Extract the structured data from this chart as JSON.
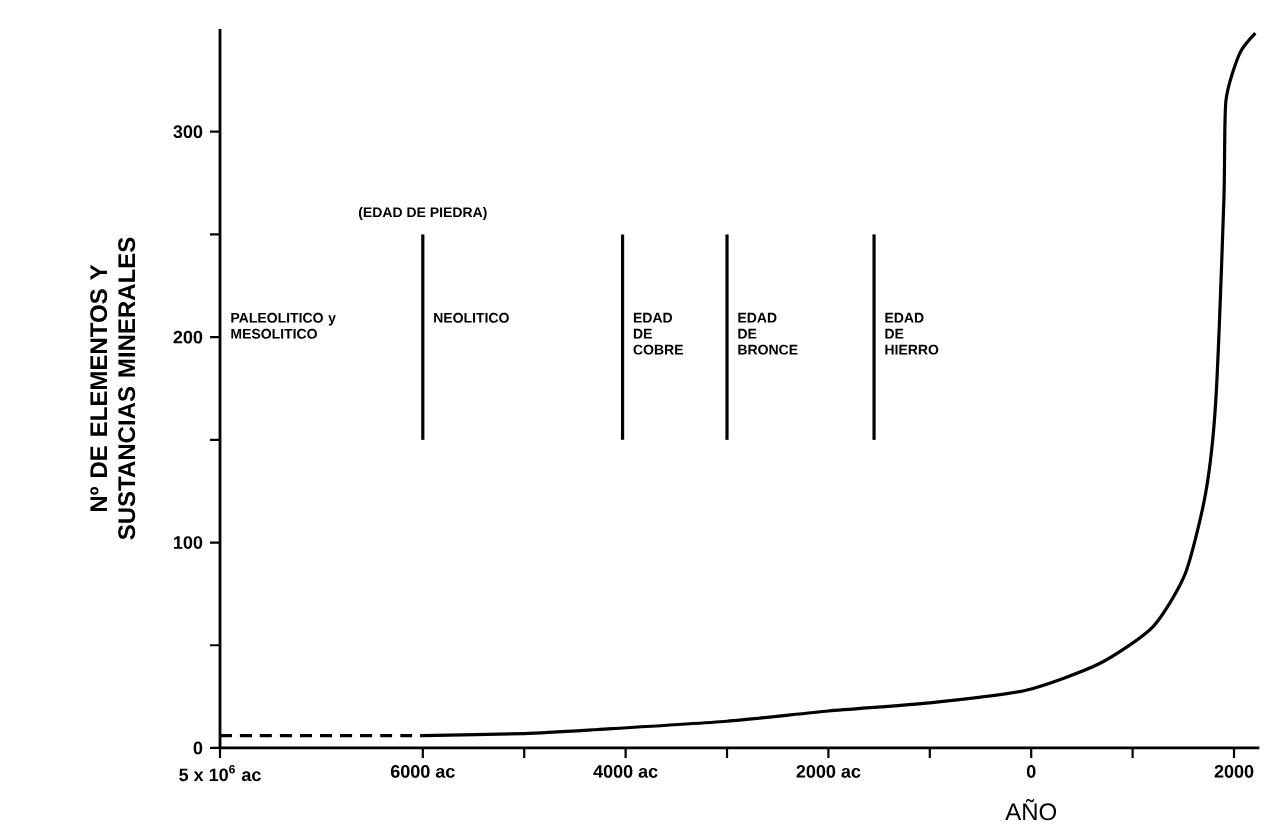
{
  "chart_data": {
    "type": "line",
    "xlabel": "AÑO",
    "ylabel": "Nº DE ELEMENTOS Y SUSTANCIAS MINERALES",
    "xlim": [
      -8000,
      2250
    ],
    "ylim": [
      0,
      350
    ],
    "xticks": [
      {
        "value": -8000,
        "label": "5 x 10$^{6}$ ac"
      },
      {
        "value": -6000,
        "label": "6000 ac"
      },
      {
        "value": -5000,
        "label": null
      },
      {
        "value": -4000,
        "label": "4000 ac"
      },
      {
        "value": -3000,
        "label": null
      },
      {
        "value": -2000,
        "label": "2000 ac"
      },
      {
        "value": -1000,
        "label": null
      },
      0,
      {
        "value": 1000,
        "label": null
      },
      2000
    ],
    "yticks": [
      0,
      {
        "value": 50,
        "label": null
      },
      100,
      {
        "value": 150,
        "label": null
      },
      200,
      {
        "value": 250,
        "label": null
      },
      300
    ],
    "series": [
      {
        "color": "#000000",
        "line_style": "dashed",
        "x": [
          -8000,
          -6000
        ],
        "values": [
          6,
          6
        ]
      },
      {
        "color": "#000000",
        "line_style": "solid",
        "x": [
          -6000,
          -5000,
          -4270,
          -3000,
          -2000,
          -1000,
          -60,
          670,
          1200,
          1520,
          1720,
          1820,
          1900,
          1920,
          2055,
          2210
        ],
        "values": [
          6,
          7,
          9,
          13,
          18,
          22,
          28,
          41,
          59,
          85,
          124,
          169,
          267,
          315,
          338,
          348
        ]
      },
      {
        "color": "#000000",
        "line_style": "solid",
        "x": [
          -6000,
          -6000
        ],
        "values": [
          150,
          250
        ]
      },
      {
        "color": "#000000",
        "line_style": "solid",
        "x": [
          -4030,
          -4030
        ],
        "values": [
          150,
          250
        ]
      },
      {
        "color": "#000000",
        "line_style": "solid",
        "x": [
          -3000,
          -3000
        ],
        "values": [
          150,
          250
        ]
      },
      {
        "color": "#000000",
        "line_style": "solid",
        "x": [
          -1550,
          -1550
        ],
        "values": [
          150,
          250
        ]
      }
    ],
    "annotations": [
      "(EDAD DE PIEDRA)",
      "PALEOLITICO y MESOLITICO",
      "NEOLITICO",
      "EDAD DE COBRE",
      "EDAD DE BRONCE",
      "EDAD DE HIERRO"
    ]
  }
}
